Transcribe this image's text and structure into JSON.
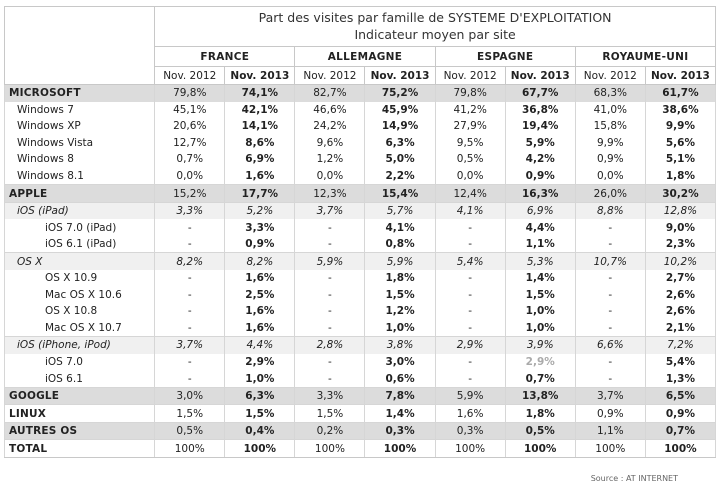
{
  "title_line1": "Part des visites par famille de SYSTEME D'EXPLOITATION",
  "title_line2": "Indicateur moyen par site",
  "countries": [
    "FRANCE",
    "ALLEMAGNE",
    "ESPAGNE",
    "ROYAUME-UNI"
  ],
  "period_2012": "Nov. 2012",
  "period_2013": "Nov. 2013",
  "source": "Source : AT INTERNET",
  "rows": [
    {
      "label": "MICROSOFT",
      "kind": "top",
      "values": [
        "79,8%",
        "74,1%",
        "82,7%",
        "75,2%",
        "79,8%",
        "67,7%",
        "68,3%",
        "61,7%"
      ]
    },
    {
      "label": "Windows 7",
      "kind": "lvl1",
      "values": [
        "45,1%",
        "42,1%",
        "46,6%",
        "45,9%",
        "41,2%",
        "36,8%",
        "41,0%",
        "38,6%"
      ]
    },
    {
      "label": "Windows XP",
      "kind": "lvl1",
      "values": [
        "20,6%",
        "14,1%",
        "24,2%",
        "14,9%",
        "27,9%",
        "19,4%",
        "15,8%",
        "9,9%"
      ]
    },
    {
      "label": "Windows Vista",
      "kind": "lvl1",
      "values": [
        "12,7%",
        "8,6%",
        "9,6%",
        "6,3%",
        "9,5%",
        "5,9%",
        "9,9%",
        "5,6%"
      ]
    },
    {
      "label": "Windows 8",
      "kind": "lvl1",
      "values": [
        "0,7%",
        "6,9%",
        "1,2%",
        "5,0%",
        "0,5%",
        "4,2%",
        "0,9%",
        "5,1%"
      ]
    },
    {
      "label": "Windows 8.1",
      "kind": "lvl1",
      "values": [
        "0,0%",
        "1,6%",
        "0,0%",
        "2,2%",
        "0,0%",
        "0,9%",
        "0,0%",
        "1,8%"
      ]
    },
    {
      "label": "APPLE",
      "kind": "top",
      "values": [
        "15,2%",
        "17,7%",
        "12,3%",
        "15,4%",
        "12,4%",
        "16,3%",
        "26,0%",
        "30,2%"
      ]
    },
    {
      "label": "iOS (iPad)",
      "kind": "sub",
      "values": [
        "3,3%",
        "5,2%",
        "3,7%",
        "5,7%",
        "4,1%",
        "6,9%",
        "8,8%",
        "12,8%"
      ]
    },
    {
      "label": "iOS 7.0 (iPad)",
      "kind": "lvl2",
      "values": [
        "-",
        "3,3%",
        "-",
        "4,1%",
        "-",
        "4,4%",
        "-",
        "9,0%"
      ]
    },
    {
      "label": "iOS 6.1 (iPad)",
      "kind": "lvl2",
      "values": [
        "-",
        "0,9%",
        "-",
        "0,8%",
        "-",
        "1,1%",
        "-",
        "2,3%"
      ]
    },
    {
      "label": "OS X",
      "kind": "sub",
      "values": [
        "8,2%",
        "8,2%",
        "5,9%",
        "5,9%",
        "5,4%",
        "5,3%",
        "10,7%",
        "10,2%"
      ]
    },
    {
      "label": "OS X 10.9",
      "kind": "lvl2",
      "values": [
        "-",
        "1,6%",
        "-",
        "1,8%",
        "-",
        "1,4%",
        "-",
        "2,7%"
      ]
    },
    {
      "label": "Mac OS X 10.6",
      "kind": "lvl2",
      "values": [
        "-",
        "2,5%",
        "-",
        "1,5%",
        "-",
        "1,5%",
        "-",
        "2,6%"
      ]
    },
    {
      "label": "OS X 10.8",
      "kind": "lvl2",
      "values": [
        "-",
        "1,6%",
        "-",
        "1,2%",
        "-",
        "1,0%",
        "-",
        "2,6%"
      ]
    },
    {
      "label": "Mac OS X 10.7",
      "kind": "lvl2",
      "values": [
        "-",
        "1,6%",
        "-",
        "1,0%",
        "-",
        "1,0%",
        "-",
        "2,1%"
      ]
    },
    {
      "label": "iOS (iPhone, iPod)",
      "kind": "sub",
      "values": [
        "3,7%",
        "4,4%",
        "2,8%",
        "3,8%",
        "2,9%",
        "3,9%",
        "6,6%",
        "7,2%"
      ]
    },
    {
      "label": "iOS 7.0",
      "kind": "lvl2",
      "values": [
        "-",
        "2,9%",
        "-",
        "3,0%",
        "-",
        "2,9%",
        "-",
        "5,4%"
      ]
    },
    {
      "label": "iOS 6.1",
      "kind": "lvl2",
      "values": [
        "-",
        "1,0%",
        "-",
        "0,6%",
        "-",
        "0,7%",
        "-",
        "1,3%"
      ]
    },
    {
      "label": "GOOGLE",
      "kind": "top",
      "values": [
        "3,0%",
        "6,3%",
        "3,3%",
        "7,8%",
        "5,9%",
        "13,8%",
        "3,7%",
        "6,5%"
      ]
    },
    {
      "label": "LINUX",
      "kind": "top",
      "values": [
        "1,5%",
        "1,5%",
        "1,5%",
        "1,4%",
        "1,6%",
        "1,8%",
        "0,9%",
        "0,9%"
      ]
    },
    {
      "label": "AUTRES OS",
      "kind": "top",
      "values": [
        "0,5%",
        "0,4%",
        "0,2%",
        "0,3%",
        "0,3%",
        "0,5%",
        "1,1%",
        "0,7%"
      ]
    },
    {
      "label": "TOTAL",
      "kind": "total",
      "values": [
        "100%",
        "100%",
        "100%",
        "100%",
        "100%",
        "100%",
        "100%",
        "100%"
      ]
    }
  ]
}
